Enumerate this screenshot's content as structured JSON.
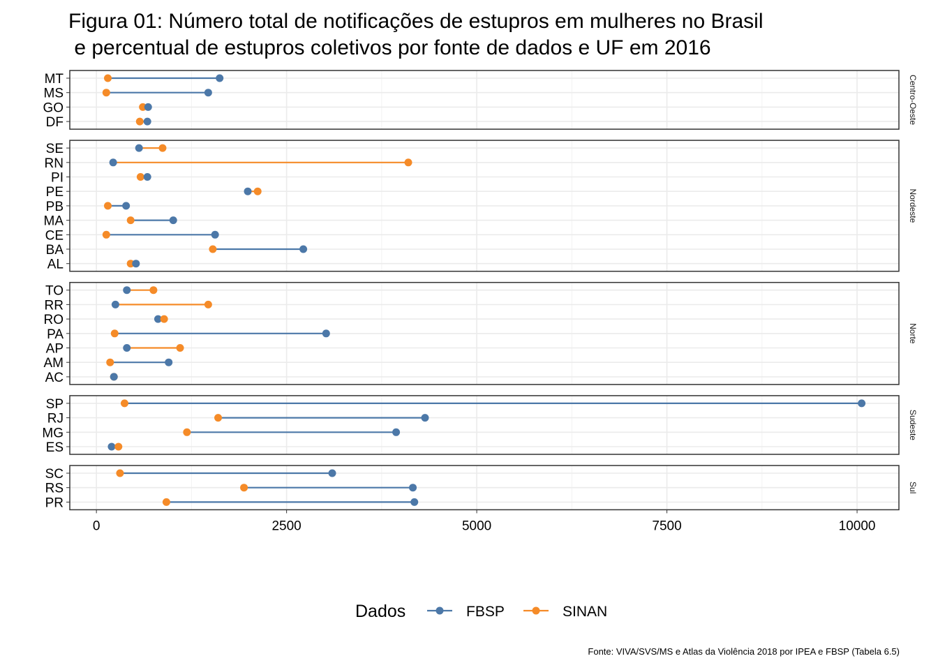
{
  "chart_data": {
    "type": "dumbbell",
    "title_lines": [
      "Figura 01: Número total de notificações de estupros em mulheres no Brasil",
      " e percentual de estupros coletivos por fonte de dados e UF em 2016"
    ],
    "xlabel": "",
    "ylabel": "",
    "xlim": [
      -350,
      10550
    ],
    "x_ticks": [
      0,
      2500,
      5000,
      7500,
      10000
    ],
    "grid": true,
    "legend": {
      "title": "Dados",
      "position": "bottom",
      "entries": [
        {
          "name": "FBSP",
          "color": "#4c78a8"
        },
        {
          "name": "SINAN",
          "color": "#f58b28"
        }
      ]
    },
    "caption": "Fonte: VIVA/SVS/MS e Atlas da Violência 2018 por IPEA e FBSP (Tabela 6.5)",
    "panels": [
      {
        "name": "Centro-Oeste",
        "states": [
          {
            "uf": "MT",
            "FBSP": 1620,
            "SINAN": 150
          },
          {
            "uf": "MS",
            "FBSP": 1470,
            "SINAN": 130
          },
          {
            "uf": "GO",
            "FBSP": 680,
            "SINAN": 610
          },
          {
            "uf": "DF",
            "FBSP": 670,
            "SINAN": 570
          }
        ]
      },
      {
        "name": "Nordeste",
        "states": [
          {
            "uf": "SE",
            "FBSP": 560,
            "SINAN": 870
          },
          {
            "uf": "RN",
            "FBSP": 220,
            "SINAN": 4100
          },
          {
            "uf": "PI",
            "FBSP": 670,
            "SINAN": 580
          },
          {
            "uf": "PE",
            "FBSP": 1990,
            "SINAN": 2120
          },
          {
            "uf": "PB",
            "FBSP": 390,
            "SINAN": 150
          },
          {
            "uf": "MA",
            "FBSP": 1010,
            "SINAN": 450
          },
          {
            "uf": "CE",
            "FBSP": 1560,
            "SINAN": 130
          },
          {
            "uf": "BA",
            "FBSP": 2720,
            "SINAN": 1530
          },
          {
            "uf": "AL",
            "FBSP": 520,
            "SINAN": 450
          }
        ]
      },
      {
        "name": "Norte",
        "states": [
          {
            "uf": "TO",
            "FBSP": 400,
            "SINAN": 750
          },
          {
            "uf": "RR",
            "FBSP": 250,
            "SINAN": 1470
          },
          {
            "uf": "RO",
            "FBSP": 810,
            "SINAN": 890
          },
          {
            "uf": "PA",
            "FBSP": 3020,
            "SINAN": 240
          },
          {
            "uf": "AP",
            "FBSP": 400,
            "SINAN": 1100
          },
          {
            "uf": "AM",
            "FBSP": 950,
            "SINAN": 180
          },
          {
            "uf": "AC",
            "FBSP": 230,
            "SINAN": 230
          }
        ]
      },
      {
        "name": "Sudeste",
        "states": [
          {
            "uf": "SP",
            "FBSP": 10060,
            "SINAN": 370
          },
          {
            "uf": "RJ",
            "FBSP": 4320,
            "SINAN": 1600
          },
          {
            "uf": "MG",
            "FBSP": 3940,
            "SINAN": 1190
          },
          {
            "uf": "ES",
            "FBSP": 200,
            "SINAN": 290
          }
        ]
      },
      {
        "name": "Sul",
        "states": [
          {
            "uf": "SC",
            "FBSP": 3100,
            "SINAN": 310
          },
          {
            "uf": "RS",
            "FBSP": 4160,
            "SINAN": 1940
          },
          {
            "uf": "PR",
            "FBSP": 4180,
            "SINAN": 920
          }
        ]
      }
    ]
  }
}
